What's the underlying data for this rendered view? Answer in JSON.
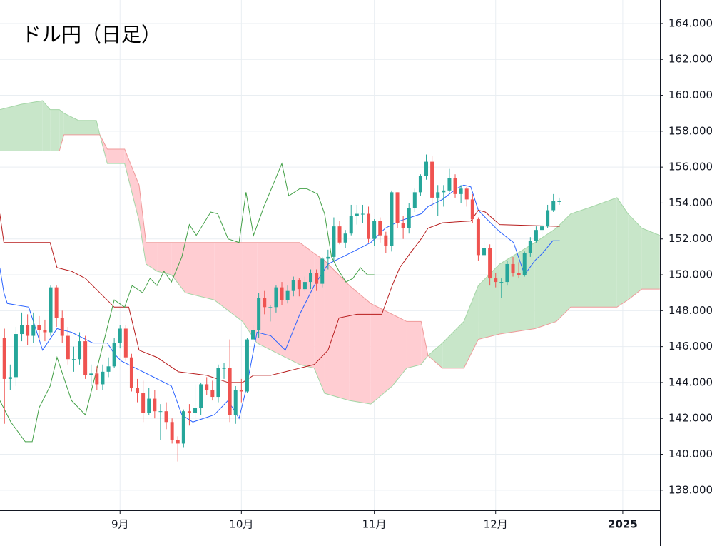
{
  "chart_data": {
    "type": "candlestick",
    "title": "ドル円（日足）",
    "x": [
      2,
      3,
      4,
      5,
      6,
      7,
      8,
      9,
      10,
      11,
      12,
      13,
      14,
      15,
      16,
      17,
      18,
      19,
      20,
      21,
      22,
      23,
      24,
      25,
      26,
      27,
      28,
      29,
      30,
      31,
      32,
      33,
      34,
      35,
      36,
      37,
      38,
      39,
      40,
      41,
      42,
      43,
      44,
      45,
      46,
      47,
      48,
      49,
      50,
      51,
      52,
      53,
      54,
      55,
      56,
      57,
      58,
      59,
      60,
      61,
      62,
      63,
      64,
      65,
      66,
      67,
      68,
      69,
      70,
      71,
      72,
      73,
      74,
      75,
      76,
      77,
      78,
      79,
      80,
      81,
      82,
      83,
      84,
      85,
      86,
      87,
      88,
      89,
      90,
      91,
      92,
      93,
      94,
      95,
      96,
      97,
      98
    ],
    "open": [
      146.5,
      144.2,
      144.3,
      146.7,
      147.2,
      146.6,
      147.2,
      146.9,
      146.8,
      149.3,
      147.6,
      146.6,
      145.3,
      145.3,
      146.3,
      144.4,
      144.5,
      143.9,
      144.6,
      144.9,
      146.2,
      147.0,
      145.4,
      143.7,
      143.4,
      142.3,
      143.1,
      142.4,
      142.4,
      141.8,
      140.8,
      140.6,
      142.4,
      142.3,
      142.6,
      143.9,
      143.6,
      143.2,
      144.8,
      144.8,
      142.2,
      143.6,
      143.5,
      146.4,
      146.9,
      148.7,
      148.2,
      148.2,
      149.3,
      148.6,
      149.1,
      149.7,
      149.2,
      149.6,
      150.1,
      149.5,
      150.9,
      151.0,
      152.7,
      151.8,
      152.3,
      153.3,
      153.4,
      153.4,
      152.0,
      153.0,
      152.2,
      151.6,
      154.6,
      152.9,
      152.6,
      153.7,
      154.6,
      155.5,
      156.3,
      154.3,
      154.6,
      154.7,
      155.4,
      154.5,
      154.8,
      154.2,
      153.1,
      151.1,
      151.5,
      149.8,
      149.6,
      149.6,
      150.6,
      150.1,
      150.0,
      151.2,
      151.9,
      152.5,
      152.7,
      153.6,
      154.1
    ],
    "high": [
      147.0,
      145.0,
      147.1,
      147.9,
      147.8,
      147.9,
      147.7,
      147.5,
      149.4,
      149.4,
      148.0,
      147.1,
      146.0,
      146.8,
      146.6,
      145.0,
      144.9,
      145.0,
      145.4,
      146.5,
      147.2,
      147.2,
      145.6,
      144.2,
      144.1,
      143.7,
      143.6,
      142.8,
      142.9,
      142.0,
      141.0,
      142.5,
      142.8,
      143.9,
      144.0,
      144.3,
      144.1,
      145.0,
      145.1,
      146.4,
      143.8,
      144.2,
      146.5,
      147.2,
      149.0,
      149.1,
      148.3,
      149.4,
      149.6,
      149.4,
      149.9,
      149.8,
      149.9,
      150.3,
      150.3,
      151.0,
      151.4,
      153.2,
      153.0,
      152.5,
      153.9,
      153.9,
      153.9,
      153.8,
      153.1,
      153.2,
      152.4,
      154.7,
      154.6,
      153.3,
      154.0,
      154.8,
      155.6,
      156.7,
      156.6,
      155.0,
      155.0,
      155.9,
      155.6,
      155.0,
      154.9,
      154.5,
      153.2,
      151.9,
      151.7,
      150.1,
      149.8,
      150.8,
      151.0,
      150.7,
      151.3,
      152.1,
      152.7,
      152.9,
      153.9,
      154.5,
      154.3
    ],
    "low": [
      141.7,
      143.6,
      143.8,
      146.3,
      146.1,
      146.2,
      146.4,
      146.3,
      146.6,
      147.1,
      146.2,
      145.0,
      144.6,
      145.0,
      144.2,
      143.8,
      143.6,
      143.6,
      144.3,
      144.8,
      145.9,
      145.2,
      143.5,
      142.9,
      141.8,
      142.2,
      142.0,
      140.8,
      141.4,
      140.6,
      139.6,
      140.4,
      141.6,
      142.0,
      142.2,
      143.3,
      143.0,
      142.9,
      144.2,
      141.8,
      141.7,
      142.9,
      143.4,
      145.9,
      146.5,
      147.8,
      147.4,
      147.9,
      148.3,
      148.4,
      148.8,
      148.8,
      149.1,
      149.2,
      149.1,
      149.3,
      150.3,
      150.8,
      151.7,
      151.5,
      152.2,
      152.8,
      152.9,
      151.8,
      151.6,
      151.8,
      151.2,
      151.3,
      152.6,
      152.0,
      152.3,
      153.5,
      154.4,
      155.3,
      153.7,
      153.3,
      153.8,
      154.6,
      154.3,
      154.0,
      153.8,
      152.9,
      150.8,
      151.0,
      149.4,
      149.3,
      148.7,
      149.4,
      149.9,
      149.8,
      149.9,
      151.0,
      151.8,
      152.1,
      152.6,
      153.5,
      153.9
    ],
    "close": [
      144.2,
      144.3,
      146.7,
      147.2,
      146.6,
      147.2,
      146.9,
      146.8,
      149.3,
      147.6,
      146.6,
      145.3,
      145.3,
      146.3,
      144.4,
      144.5,
      143.9,
      144.6,
      144.9,
      146.2,
      147.0,
      145.4,
      143.7,
      143.4,
      142.3,
      143.1,
      142.4,
      142.4,
      141.8,
      140.8,
      140.6,
      142.4,
      142.3,
      142.6,
      143.9,
      143.6,
      143.2,
      144.8,
      144.8,
      142.2,
      143.6,
      143.5,
      146.4,
      146.9,
      148.7,
      148.2,
      148.2,
      149.3,
      148.6,
      149.1,
      149.7,
      149.2,
      149.6,
      150.1,
      149.5,
      150.9,
      151.0,
      152.7,
      151.8,
      152.3,
      153.3,
      153.4,
      153.4,
      152.0,
      153.0,
      152.2,
      151.6,
      154.6,
      152.9,
      152.6,
      153.7,
      154.6,
      155.5,
      156.3,
      154.3,
      154.6,
      154.7,
      155.4,
      154.5,
      154.8,
      154.2,
      153.1,
      151.1,
      151.5,
      149.8,
      149.6,
      149.6,
      150.6,
      150.1,
      150.0,
      151.2,
      151.9,
      152.5,
      152.7,
      153.6,
      154.1,
      154.1
    ],
    "up_color": "#26a69a",
    "down_color": "#ef5350",
    "cloud": {
      "x": [
        1.2,
        4.9,
        8.6,
        9.9,
        11.5,
        12.3,
        14.8,
        17.9,
        18.5,
        19.8,
        22.8,
        25.3,
        26.5,
        28.4,
        30.9,
        33.3,
        38.3,
        43.2,
        45.7,
        50.6,
        53.1,
        55.6,
        57.4,
        61.7,
        65.4,
        69.1,
        71.6,
        74.1,
        75.3,
        77.8,
        81.5,
        84.0,
        87.7,
        93.8,
        97.5,
        100.0,
        103.7,
        108.0,
        109.9,
        112.3,
        115.4
      ],
      "span_a": [
        159.2,
        159.5,
        159.7,
        159.2,
        159.2,
        159.0,
        158.6,
        158.6,
        157.8,
        156.2,
        156.2,
        153.0,
        150.6,
        150.2,
        150.0,
        149.0,
        148.6,
        147.4,
        146.2,
        145.4,
        145.0,
        144.8,
        143.4,
        143.0,
        142.8,
        143.8,
        144.8,
        145.0,
        145.5,
        146.2,
        147.4,
        149.4,
        150.6,
        151.8,
        152.6,
        153.4,
        153.8,
        154.3,
        153.4,
        152.6,
        152.2
      ],
      "span_b": [
        156.9,
        156.9,
        156.9,
        156.9,
        156.9,
        157.8,
        157.8,
        157.8,
        157.8,
        157.0,
        157.0,
        155.0,
        151.8,
        151.8,
        151.8,
        151.8,
        151.8,
        151.8,
        151.8,
        151.8,
        151.8,
        151.2,
        150.8,
        149.4,
        148.4,
        147.8,
        147.4,
        147.4,
        145.5,
        144.8,
        144.8,
        146.4,
        146.7,
        147.0,
        147.4,
        148.2,
        148.2,
        148.2,
        148.6,
        149.2,
        149.2
      ],
      "span_a_color": "#a5d6a7",
      "span_b_color": "#ef9a9a",
      "up_fill": "#c8e6c9",
      "down_fill": "#ffcdd2"
    },
    "lines": [
      {
        "color": "#2962ff",
        "x": [
          1.2,
          1.9,
          2.5,
          6.2,
          8.6,
          11.1,
          13.6,
          17.3,
          19.8,
          21.0,
          22.2,
          24.7,
          27.2,
          30.9,
          32.7,
          34.6,
          38.3,
          40.7,
          42.6,
          43.8,
          45.7,
          48.1,
          50.6,
          53.1,
          55.6,
          58.0,
          60.5,
          63.0,
          65.4,
          67.9,
          70.4,
          74.1,
          75.3,
          77.8,
          80.2,
          81.5,
          82.7,
          84.0,
          85.8,
          87.7,
          90.1,
          92.0,
          93.8,
          95.1,
          96.9,
          98.1
        ],
        "values": [
          150.4,
          149.0,
          148.4,
          148.2,
          145.8,
          147.0,
          146.8,
          146.2,
          146.2,
          145.6,
          145.2,
          144.8,
          144.4,
          143.8,
          142.2,
          141.8,
          142.2,
          143.0,
          142.0,
          143.6,
          146.8,
          146.6,
          145.8,
          147.8,
          149.4,
          150.6,
          151.0,
          151.4,
          151.8,
          152.6,
          153.0,
          153.4,
          153.8,
          154.2,
          154.8,
          155.0,
          154.9,
          153.6,
          153.0,
          152.4,
          151.8,
          150.0,
          150.8,
          151.2,
          151.9,
          151.9
        ]
      },
      {
        "color": "#b71c1c",
        "x": [
          1.2,
          1.9,
          9.9,
          11.1,
          13.6,
          16.0,
          18.5,
          21.0,
          23.5,
          25.3,
          28.4,
          32.1,
          37.0,
          40.7,
          43.2,
          45.1,
          48.1,
          50.6,
          53.1,
          55.6,
          58.0,
          59.9,
          63.0,
          67.3,
          69.1,
          70.4,
          72.2,
          74.1,
          75.3,
          77.8,
          82.7,
          84.0,
          85.2,
          87.7,
          98.1
        ],
        "values": [
          153.4,
          151.8,
          151.8,
          150.4,
          150.2,
          149.8,
          149.0,
          148.2,
          148.2,
          145.8,
          145.4,
          144.6,
          144.4,
          144.0,
          144.0,
          144.4,
          144.4,
          144.6,
          144.8,
          145.0,
          145.8,
          147.6,
          147.8,
          147.8,
          149.4,
          150.4,
          151.2,
          152.0,
          152.6,
          152.9,
          153.0,
          153.6,
          153.5,
          152.8,
          152.7
        ]
      },
      {
        "color": "#43a047",
        "x": [
          1.2,
          3.1,
          5.6,
          6.8,
          8.0,
          9.9,
          11.1,
          13.6,
          16.0,
          18.5,
          21.0,
          22.8,
          24.1,
          25.9,
          27.2,
          28.4,
          29.6,
          30.9,
          32.7,
          34.0,
          35.2,
          37.7,
          38.9,
          40.7,
          42.6,
          43.8,
          45.1,
          46.9,
          50.0,
          51.2,
          53.1,
          54.3,
          56.2,
          57.4,
          58.6,
          59.9,
          61.1,
          62.3,
          63.6,
          64.8,
          66.0
        ],
        "values": [
          143.0,
          141.8,
          140.7,
          140.7,
          142.6,
          143.8,
          145.4,
          143.0,
          142.2,
          145.4,
          148.6,
          148.2,
          149.4,
          149.0,
          149.8,
          149.4,
          150.2,
          149.6,
          151.0,
          152.8,
          152.2,
          153.5,
          153.4,
          152.0,
          151.8,
          154.6,
          152.2,
          153.8,
          156.2,
          154.4,
          154.8,
          154.8,
          154.5,
          153.4,
          151.0,
          150.2,
          149.6,
          149.8,
          150.4,
          150.0,
          150.0
        ]
      }
    ],
    "xlim": [
      1.23,
      115.43
    ],
    "ylim": [
      136.88,
      165.31
    ],
    "xticks": [
      {
        "value": 22,
        "label": "9月"
      },
      {
        "value": 43,
        "label": "10月"
      },
      {
        "value": 66,
        "label": "11月"
      },
      {
        "value": 87,
        "label": "12月"
      },
      {
        "value": 109,
        "label": "2025"
      }
    ],
    "yticks": [
      {
        "value": 138,
        "label": "138.000"
      },
      {
        "value": 140,
        "label": "140.000"
      },
      {
        "value": 142,
        "label": "142.000"
      },
      {
        "value": 144,
        "label": "144.000"
      },
      {
        "value": 146,
        "label": "146.000"
      },
      {
        "value": 148,
        "label": "148.000"
      },
      {
        "value": 150,
        "label": "150.000"
      },
      {
        "value": 152,
        "label": "152.000"
      },
      {
        "value": 154,
        "label": "154.000"
      },
      {
        "value": 156,
        "label": "156.000"
      },
      {
        "value": 158,
        "label": "158.000"
      },
      {
        "value": 160,
        "label": "160.000"
      },
      {
        "value": 162,
        "label": "162.000"
      },
      {
        "value": 164,
        "label": "164.000"
      }
    ],
    "grid": true
  }
}
